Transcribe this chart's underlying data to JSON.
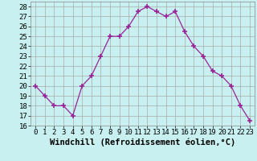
{
  "x": [
    0,
    1,
    2,
    3,
    4,
    5,
    6,
    7,
    8,
    9,
    10,
    11,
    12,
    13,
    14,
    15,
    16,
    17,
    18,
    19,
    20,
    21,
    22,
    23
  ],
  "y": [
    20,
    19,
    18,
    18,
    17,
    20,
    21,
    23,
    25,
    25,
    26,
    27.5,
    28,
    27.5,
    27,
    27.5,
    25.5,
    24,
    23,
    21.5,
    21,
    20,
    18,
    16.5
  ],
  "line_color": "#992299",
  "marker": "+",
  "marker_size": 4,
  "bg_color": "#c8f0f0",
  "grid_color": "#aaaaaa",
  "xlabel": "Windchill (Refroidissement éolien,°C)",
  "xlim": [
    -0.5,
    23.5
  ],
  "ylim": [
    16,
    28.5
  ],
  "yticks": [
    16,
    17,
    18,
    19,
    20,
    21,
    22,
    23,
    24,
    25,
    26,
    27,
    28
  ],
  "xticks": [
    0,
    1,
    2,
    3,
    4,
    5,
    6,
    7,
    8,
    9,
    10,
    11,
    12,
    13,
    14,
    15,
    16,
    17,
    18,
    19,
    20,
    21,
    22,
    23
  ],
  "tick_fontsize": 6.5,
  "xlabel_fontsize": 7.5
}
